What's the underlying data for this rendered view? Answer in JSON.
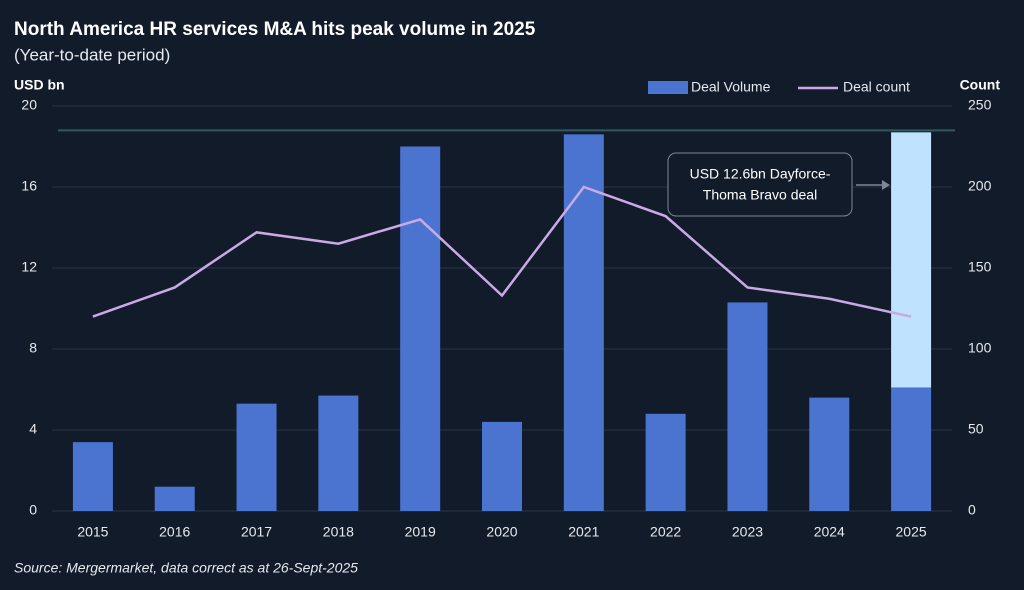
{
  "chart_data": {
    "type": "bar",
    "title": "North America HR services M&A hits peak volume in 2025",
    "subtitle": "(Year-to-date period)",
    "y_label": "USD bn",
    "y2_label": "Count",
    "source": "Source: Mergermarket, data correct as at 26-Sept-2025",
    "categories": [
      "2015",
      "2016",
      "2017",
      "2018",
      "2019",
      "2020",
      "2021",
      "2022",
      "2023",
      "2024",
      "2025"
    ],
    "series": [
      {
        "name": "Deal Volume",
        "type": "bar",
        "color": "#4a74cf",
        "values": [
          3.4,
          1.2,
          5.3,
          5.7,
          18.0,
          4.4,
          18.6,
          4.8,
          10.3,
          5.6,
          6.1
        ]
      },
      {
        "type": "bar",
        "color": "#bfe3ff",
        "values": [
          null,
          null,
          null,
          null,
          null,
          null,
          null,
          null,
          null,
          null,
          12.6
        ]
      },
      {
        "name": "Deal count",
        "type": "line",
        "axis": "y2",
        "color": "#c9a9e6",
        "values": [
          120,
          138,
          172,
          165,
          180,
          133,
          200,
          182,
          138,
          131,
          120
        ]
      }
    ],
    "annotation": [
      "USD 12.6bn Dayforce-",
      "Thoma Bravo deal"
    ],
    "ylim": [
      0,
      20
    ],
    "yticks": [
      0,
      4,
      8,
      12,
      16,
      20
    ],
    "y2lim": [
      0,
      250
    ],
    "y2ticks": [
      0,
      50,
      100,
      150,
      200,
      250
    ],
    "grid": true
  }
}
